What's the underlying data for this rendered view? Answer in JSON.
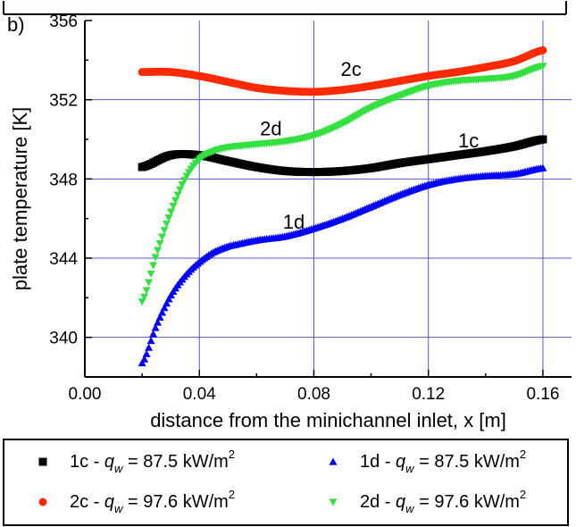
{
  "panel_label": "b)",
  "chart_data": {
    "type": "scatter",
    "title": "",
    "xlabel": "distance from the minichannel inlet, x [m]",
    "ylabel": "plate temperature [K]",
    "xlim": [
      0.0,
      0.17
    ],
    "ylim": [
      338,
      356
    ],
    "xticks": [
      0.0,
      0.04,
      0.08,
      0.12,
      0.16
    ],
    "xtick_labels": [
      "0.00",
      "0.04",
      "0.08",
      "0.12",
      "0.16"
    ],
    "yticks": [
      340,
      344,
      348,
      352,
      356
    ],
    "ytick_labels": [
      "340",
      "344",
      "348",
      "352",
      "356"
    ],
    "grid": true,
    "legend_position": "bottom",
    "series": [
      {
        "name": "1c",
        "legend_prefix": "1c - ",
        "legend_q": "q",
        "legend_sub": "w",
        "legend_value": " = 87.5  kW/m",
        "legend_sup": "2",
        "color": "#000000",
        "marker": "square",
        "label": "1c",
        "x": [
          0.02,
          0.03,
          0.04,
          0.05,
          0.06,
          0.07,
          0.08,
          0.09,
          0.1,
          0.11,
          0.12,
          0.13,
          0.14,
          0.15,
          0.16
        ],
        "y": [
          348.6,
          349.2,
          349.2,
          348.9,
          348.6,
          348.4,
          348.35,
          348.4,
          348.55,
          348.8,
          349.0,
          349.2,
          349.4,
          349.65,
          350.0
        ]
      },
      {
        "name": "1d",
        "legend_prefix": "1d - ",
        "legend_q": "q",
        "legend_sub": "w",
        "legend_value": " = 87.5  kW/m",
        "legend_sup": "2",
        "color": "#0000ff",
        "marker": "triangle-up",
        "label": "1d",
        "x": [
          0.02,
          0.025,
          0.03,
          0.035,
          0.04,
          0.045,
          0.05,
          0.06,
          0.07,
          0.08,
          0.09,
          0.1,
          0.11,
          0.12,
          0.13,
          0.14,
          0.15,
          0.16
        ],
        "y": [
          338.7,
          340.6,
          342.1,
          343.1,
          343.8,
          344.3,
          344.6,
          344.9,
          345.1,
          345.5,
          346.0,
          346.6,
          347.2,
          347.7,
          348.0,
          348.15,
          348.25,
          348.55
        ]
      },
      {
        "name": "2c",
        "legend_prefix": "2c - ",
        "legend_q": "q",
        "legend_sub": "w",
        "legend_value": " = 97.6  kW/m",
        "legend_sup": "2",
        "color": "#ff2a00",
        "marker": "circle",
        "label": "2c",
        "x": [
          0.02,
          0.03,
          0.04,
          0.05,
          0.06,
          0.07,
          0.08,
          0.09,
          0.1,
          0.11,
          0.12,
          0.13,
          0.14,
          0.15,
          0.16
        ],
        "y": [
          353.4,
          353.4,
          353.2,
          352.9,
          352.6,
          352.45,
          352.4,
          352.5,
          352.7,
          352.95,
          353.2,
          353.4,
          353.65,
          353.95,
          354.5
        ]
      },
      {
        "name": "2d",
        "legend_prefix": "2d - ",
        "legend_q": "q",
        "legend_sub": "w",
        "legend_value": " = 97.6  kW/m",
        "legend_sup": "2",
        "color": "#33e040",
        "marker": "triangle-down",
        "label": "2d",
        "x": [
          0.02,
          0.025,
          0.03,
          0.035,
          0.04,
          0.045,
          0.05,
          0.06,
          0.07,
          0.08,
          0.09,
          0.1,
          0.11,
          0.12,
          0.13,
          0.14,
          0.15,
          0.16
        ],
        "y": [
          341.8,
          344.2,
          346.3,
          348.0,
          349.0,
          349.4,
          349.6,
          349.75,
          349.9,
          350.2,
          350.8,
          351.6,
          352.2,
          352.7,
          352.95,
          353.05,
          353.2,
          353.7
        ]
      }
    ],
    "annotations": [
      {
        "text": "2c",
        "x": 0.093,
        "y": 353.2
      },
      {
        "text": "2d",
        "x": 0.065,
        "y": 350.2
      },
      {
        "text": "1c",
        "x": 0.134,
        "y": 349.6
      },
      {
        "text": "1d",
        "x": 0.073,
        "y": 345.5
      }
    ]
  }
}
